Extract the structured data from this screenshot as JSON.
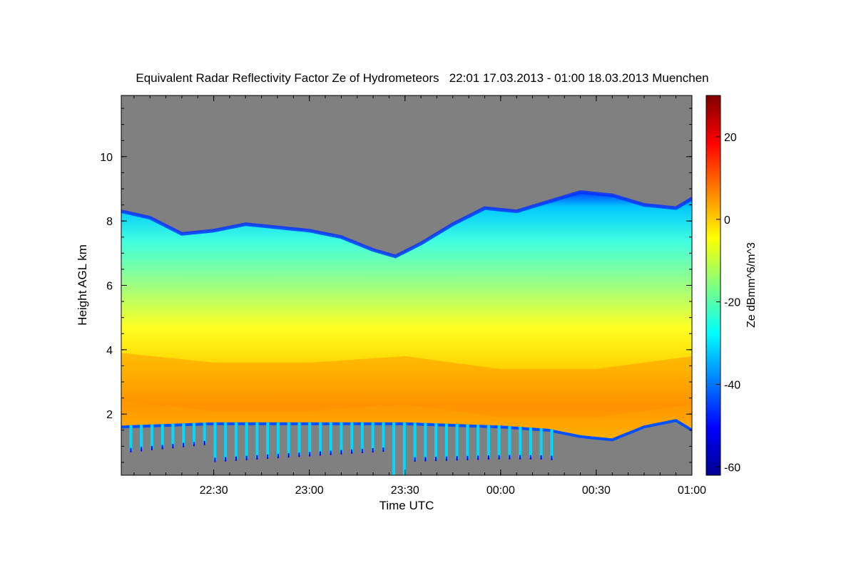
{
  "chart_data": {
    "type": "heatmap",
    "title": "Equivalent Radar Reflectivity Factor Ze of Hydrometeors   22:01 17.03.2013 - 01:00 18.03.2013 Muenchen",
    "xlabel": "Time UTC",
    "ylabel": "Height AGL km",
    "colorbar_label": "Ze dBmm^6/m^3",
    "x_range_minutes": [
      -29,
      150
    ],
    "x_ticks": [
      {
        "minute": 0,
        "label": "22:30"
      },
      {
        "minute": 30,
        "label": "23:00"
      },
      {
        "minute": 60,
        "label": "23:30"
      },
      {
        "minute": 90,
        "label": "00:00"
      },
      {
        "minute": 120,
        "label": "00:30"
      },
      {
        "minute": 150,
        "label": "01:00"
      }
    ],
    "ylim": [
      0.1,
      11.9
    ],
    "y_ticks": [
      {
        "value": 2,
        "label": "2"
      },
      {
        "value": 4,
        "label": "4"
      },
      {
        "value": 6,
        "label": "6"
      },
      {
        "value": 8,
        "label": "8"
      },
      {
        "value": 10,
        "label": "10"
      }
    ],
    "colorbar_range": [
      -62,
      30
    ],
    "colorbar_ticks": [
      {
        "value": 20,
        "label": "20"
      },
      {
        "value": 0,
        "label": "0"
      },
      {
        "value": -20,
        "label": "-20"
      },
      {
        "value": -40,
        "label": "-40"
      },
      {
        "value": -60,
        "label": "-60"
      }
    ],
    "colormap": [
      "#00008f",
      "#0000ff",
      "#0080ff",
      "#00ffff",
      "#80ff80",
      "#ffff00",
      "#ff8000",
      "#ff0000",
      "#800000"
    ],
    "no_data_color": "#808080",
    "cloud_top_km": [
      {
        "minute": -29,
        "value": 8.3
      },
      {
        "minute": -20,
        "value": 8.1
      },
      {
        "minute": -10,
        "value": 7.6
      },
      {
        "minute": 0,
        "value": 7.7
      },
      {
        "minute": 10,
        "value": 7.9
      },
      {
        "minute": 20,
        "value": 7.8
      },
      {
        "minute": 30,
        "value": 7.7
      },
      {
        "minute": 40,
        "value": 7.5
      },
      {
        "minute": 50,
        "value": 7.1
      },
      {
        "minute": 57,
        "value": 6.9
      },
      {
        "minute": 65,
        "value": 7.3
      },
      {
        "minute": 75,
        "value": 7.9
      },
      {
        "minute": 85,
        "value": 8.4
      },
      {
        "minute": 95,
        "value": 8.3
      },
      {
        "minute": 105,
        "value": 8.6
      },
      {
        "minute": 115,
        "value": 8.9
      },
      {
        "minute": 125,
        "value": 8.8
      },
      {
        "minute": 135,
        "value": 8.5
      },
      {
        "minute": 145,
        "value": 8.4
      },
      {
        "minute": 150,
        "value": 8.7
      }
    ],
    "melting_layer_km": [
      {
        "minute": -29,
        "value": 1.6
      },
      {
        "minute": 0,
        "value": 1.7
      },
      {
        "minute": 30,
        "value": 1.7
      },
      {
        "minute": 60,
        "value": 1.7
      },
      {
        "minute": 90,
        "value": 1.6
      },
      {
        "minute": 105,
        "value": 1.5
      },
      {
        "minute": 115,
        "value": 1.3
      },
      {
        "minute": 125,
        "value": 1.2
      },
      {
        "minute": 135,
        "value": 1.6
      },
      {
        "minute": 145,
        "value": 1.8
      },
      {
        "minute": 150,
        "value": 1.5
      }
    ],
    "max_reflectivity_height_km": [
      {
        "minute": -29,
        "value": 3.0
      },
      {
        "minute": 0,
        "value": 2.7
      },
      {
        "minute": 30,
        "value": 2.7
      },
      {
        "minute": 60,
        "value": 2.9
      },
      {
        "minute": 90,
        "value": 2.5
      },
      {
        "minute": 120,
        "value": 2.5
      },
      {
        "minute": 150,
        "value": 2.9
      }
    ]
  }
}
